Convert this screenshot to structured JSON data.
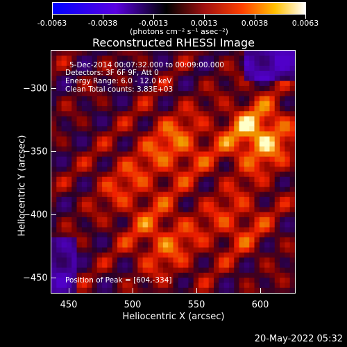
{
  "colorbar": {
    "ticks": [
      "-0.0063",
      "-0.0038",
      "-0.0013",
      "0.0013",
      "0.0038",
      "0.0063"
    ],
    "units": "(photons cm⁻² s⁻¹ asec⁻²)"
  },
  "title": "Reconstructed RHESSI Image",
  "annotations": {
    "line1": "5-Dec-2014 00:07:32.000 to 00:09:00.000",
    "line2": "Detectors: 3F 6F 9F, Att 0",
    "line3": "Energy Range: 6.0 - 12.0 keV",
    "line4": "Clean     Total counts: 3.83E+03",
    "peak": "Position of Peak = [604,-334]"
  },
  "axes": {
    "xlabel": "Heliocentric X (arcsec)",
    "ylabel": "Heliocentric Y (arcsec)",
    "xticks": [
      "450",
      "500",
      "550",
      "600"
    ],
    "yticks": [
      "−300",
      "−350",
      "−400",
      "−450"
    ]
  },
  "timestamp": "20-May-2022 05:32"
}
